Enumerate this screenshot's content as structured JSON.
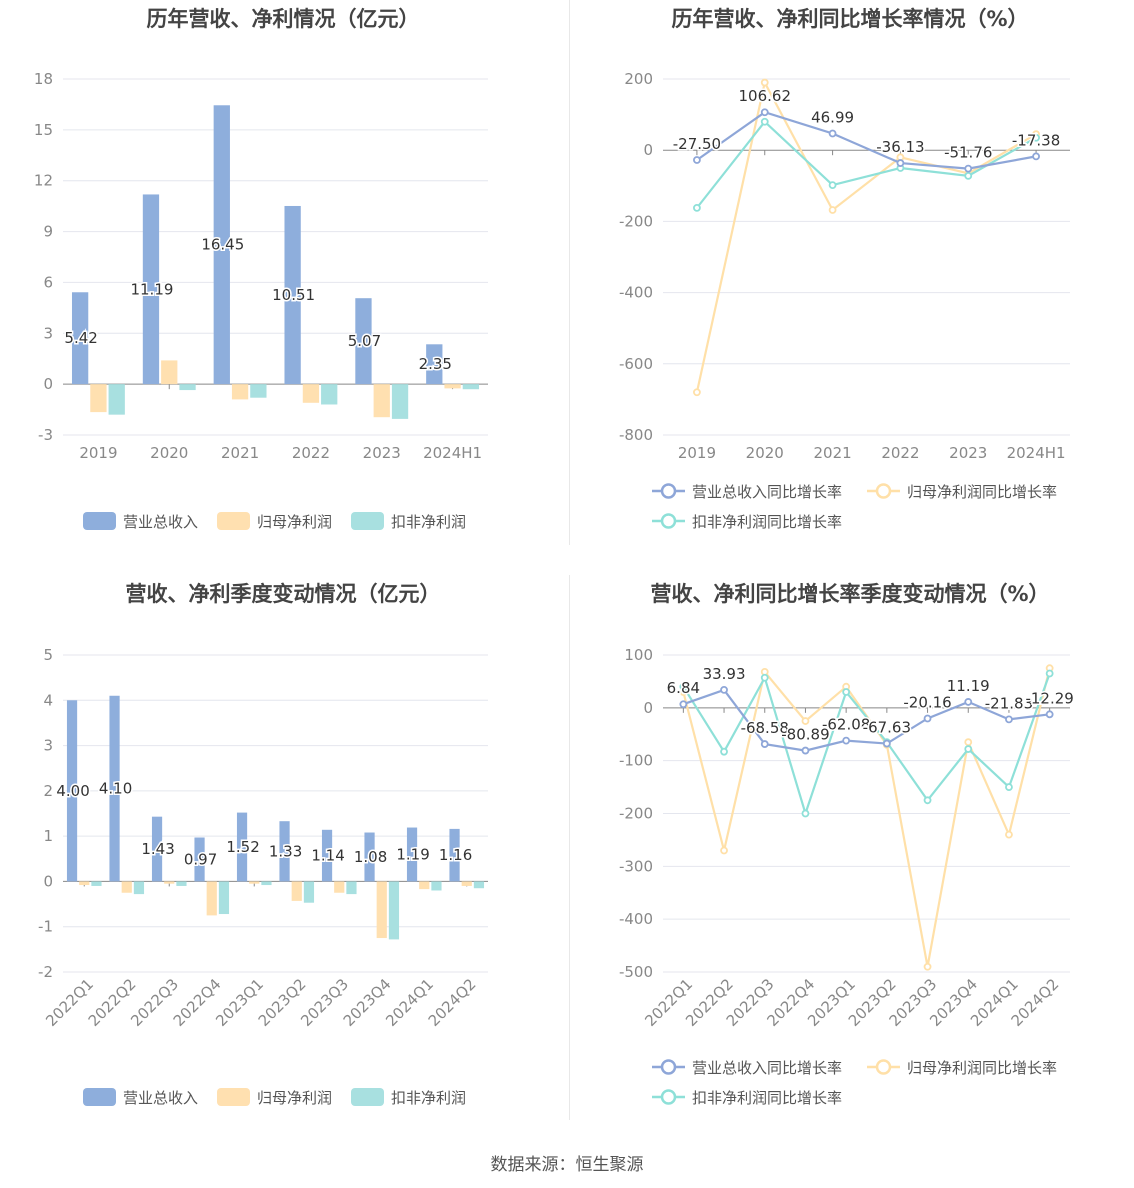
{
  "source": "数据来源：恒生聚源",
  "colors": {
    "revenue": "#8eaedc",
    "net_profit": "#ffe0b0",
    "deducted": "#a8e0e0"
  },
  "chart_data": [
    {
      "id": "p1",
      "type": "bar",
      "title": "历年营收、净利情况（亿元）",
      "categories": [
        "2019",
        "2020",
        "2021",
        "2022",
        "2023",
        "2024H1"
      ],
      "yticks": [
        18,
        15,
        12,
        9,
        6,
        3,
        0,
        -3
      ],
      "ylim": [
        -3,
        18
      ],
      "grid": true,
      "legend_position": "bottom",
      "series": [
        {
          "name": "营业总收入",
          "values": [
            5.42,
            11.19,
            16.45,
            10.51,
            5.07,
            2.35
          ],
          "labels": [
            "5.42",
            "11.19",
            "16.45",
            "10.51",
            "5.07",
            "2.35"
          ]
        },
        {
          "name": "归母净利润",
          "values": [
            -1.65,
            1.4,
            -0.9,
            -1.1,
            -1.95,
            -0.25
          ]
        },
        {
          "name": "扣非净利润",
          "values": [
            -1.8,
            -0.35,
            -0.8,
            -1.2,
            -2.05,
            -0.3
          ]
        }
      ]
    },
    {
      "id": "p2",
      "type": "line",
      "title": "历年营收、净利同比增长率情况（%）",
      "categories": [
        "2019",
        "2020",
        "2021",
        "2022",
        "2023",
        "2024H1"
      ],
      "yticks": [
        200,
        0,
        -200,
        -400,
        -600,
        -800
      ],
      "ylim": [
        -800,
        200
      ],
      "grid": true,
      "legend_position": "bottom",
      "series": [
        {
          "name": "营业总收入同比增长率",
          "values": [
            -27.5,
            106.62,
            46.99,
            -36.13,
            -51.76,
            -17.38
          ],
          "labels": [
            "-27.50",
            "106.62",
            "46.99",
            "-36.13",
            "-51.76",
            "-17.38"
          ]
        },
        {
          "name": "归母净利润同比增长率",
          "values": [
            -680,
            190,
            -168,
            -20,
            -65,
            45
          ]
        },
        {
          "name": "扣非净利润同比增长率",
          "values": [
            -162,
            80,
            -98,
            -50,
            -72,
            35
          ]
        }
      ]
    },
    {
      "id": "p3",
      "type": "bar",
      "title": "营收、净利季度变动情况（亿元）",
      "categories": [
        "2022Q1",
        "2022Q2",
        "2022Q3",
        "2022Q4",
        "2023Q1",
        "2023Q2",
        "2023Q3",
        "2023Q4",
        "2024Q1",
        "2024Q2"
      ],
      "yticks": [
        5,
        4,
        3,
        2,
        1,
        0,
        -1,
        -2
      ],
      "ylim": [
        -2,
        5
      ],
      "grid": true,
      "legend_position": "bottom",
      "series": [
        {
          "name": "营业总收入",
          "values": [
            4.0,
            4.1,
            1.43,
            0.97,
            1.52,
            1.33,
            1.14,
            1.08,
            1.19,
            1.16
          ],
          "labels": [
            "4.00",
            "4.10",
            "1.43",
            "0.97",
            "1.52",
            "1.33",
            "1.14",
            "1.08",
            "1.19",
            "1.16"
          ]
        },
        {
          "name": "归母净利润",
          "values": [
            -0.08,
            -0.25,
            -0.05,
            -0.75,
            -0.05,
            -0.43,
            -0.25,
            -1.25,
            -0.17,
            -0.1
          ]
        },
        {
          "name": "扣非净利润",
          "values": [
            -0.1,
            -0.28,
            -0.1,
            -0.72,
            -0.08,
            -0.47,
            -0.28,
            -1.28,
            -0.2,
            -0.15
          ]
        }
      ]
    },
    {
      "id": "p4",
      "type": "line",
      "title": "营收、净利同比增长率季度变动情况（%）",
      "categories": [
        "2022Q1",
        "2022Q2",
        "2022Q3",
        "2022Q4",
        "2023Q1",
        "2023Q2",
        "2023Q3",
        "2023Q4",
        "2024Q1",
        "2024Q2"
      ],
      "yticks": [
        100,
        0,
        -100,
        -200,
        -300,
        -400,
        -500
      ],
      "ylim": [
        -500,
        100
      ],
      "grid": true,
      "legend_position": "bottom",
      "series": [
        {
          "name": "营业总收入同比增长率",
          "values": [
            6.84,
            33.93,
            -68.58,
            -80.89,
            -62.08,
            -67.63,
            -20.16,
            11.19,
            -21.83,
            -12.29
          ],
          "labels": [
            "6.84",
            "33.93",
            "-68.58",
            "-80.89",
            "-62.08",
            "-67.63",
            "-20.16",
            "11.19",
            "-21.83",
            "-12.29"
          ]
        },
        {
          "name": "归母净利润同比增长率",
          "values": [
            30,
            -270,
            68,
            -25,
            40,
            -70,
            -490,
            -65,
            -240,
            75
          ]
        },
        {
          "name": "扣非净利润同比增长率",
          "values": [
            40,
            -83,
            57,
            -200,
            30,
            -65,
            -175,
            -78,
            -150,
            65
          ]
        }
      ]
    }
  ]
}
